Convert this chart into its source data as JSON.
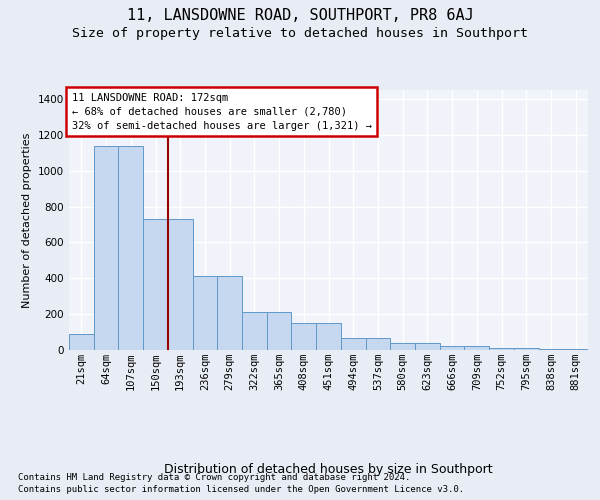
{
  "title": "11, LANSDOWNE ROAD, SOUTHPORT, PR8 6AJ",
  "subtitle": "Size of property relative to detached houses in Southport",
  "xlabel": "Distribution of detached houses by size in Southport",
  "ylabel": "Number of detached properties",
  "footer1": "Contains HM Land Registry data © Crown copyright and database right 2024.",
  "footer2": "Contains public sector information licensed under the Open Government Licence v3.0.",
  "categories": [
    "21sqm",
    "64sqm",
    "107sqm",
    "150sqm",
    "193sqm",
    "236sqm",
    "279sqm",
    "322sqm",
    "365sqm",
    "408sqm",
    "451sqm",
    "494sqm",
    "537sqm",
    "580sqm",
    "623sqm",
    "666sqm",
    "709sqm",
    "752sqm",
    "795sqm",
    "838sqm",
    "881sqm"
  ],
  "values": [
    90,
    1140,
    1140,
    730,
    730,
    415,
    415,
    210,
    210,
    150,
    150,
    65,
    65,
    40,
    40,
    20,
    20,
    10,
    10,
    8,
    8
  ],
  "bar_color": "#c5d8f0",
  "bar_edge_color": "#6098c8",
  "vline_x": 3.5,
  "vline_color": "#990000",
  "annotation_text": "11 LANSDOWNE ROAD: 172sqm\n← 68% of detached houses are smaller (2,780)\n32% of semi-detached houses are larger (1,321) →",
  "annotation_box_color": "#ffffff",
  "annotation_box_edge": "#cc0000",
  "ylim": [
    0,
    1450
  ],
  "yticks": [
    0,
    200,
    400,
    600,
    800,
    1000,
    1200,
    1400
  ],
  "bg_color": "#e8edf5",
  "plot_bg_color": "#f0f4fa",
  "grid_color": "#ffffff",
  "title_fontsize": 11,
  "subtitle_fontsize": 9.5,
  "xlabel_fontsize": 9,
  "ylabel_fontsize": 8,
  "tick_fontsize": 7.5,
  "annotation_fontsize": 7.5,
  "footer_fontsize": 6.5
}
